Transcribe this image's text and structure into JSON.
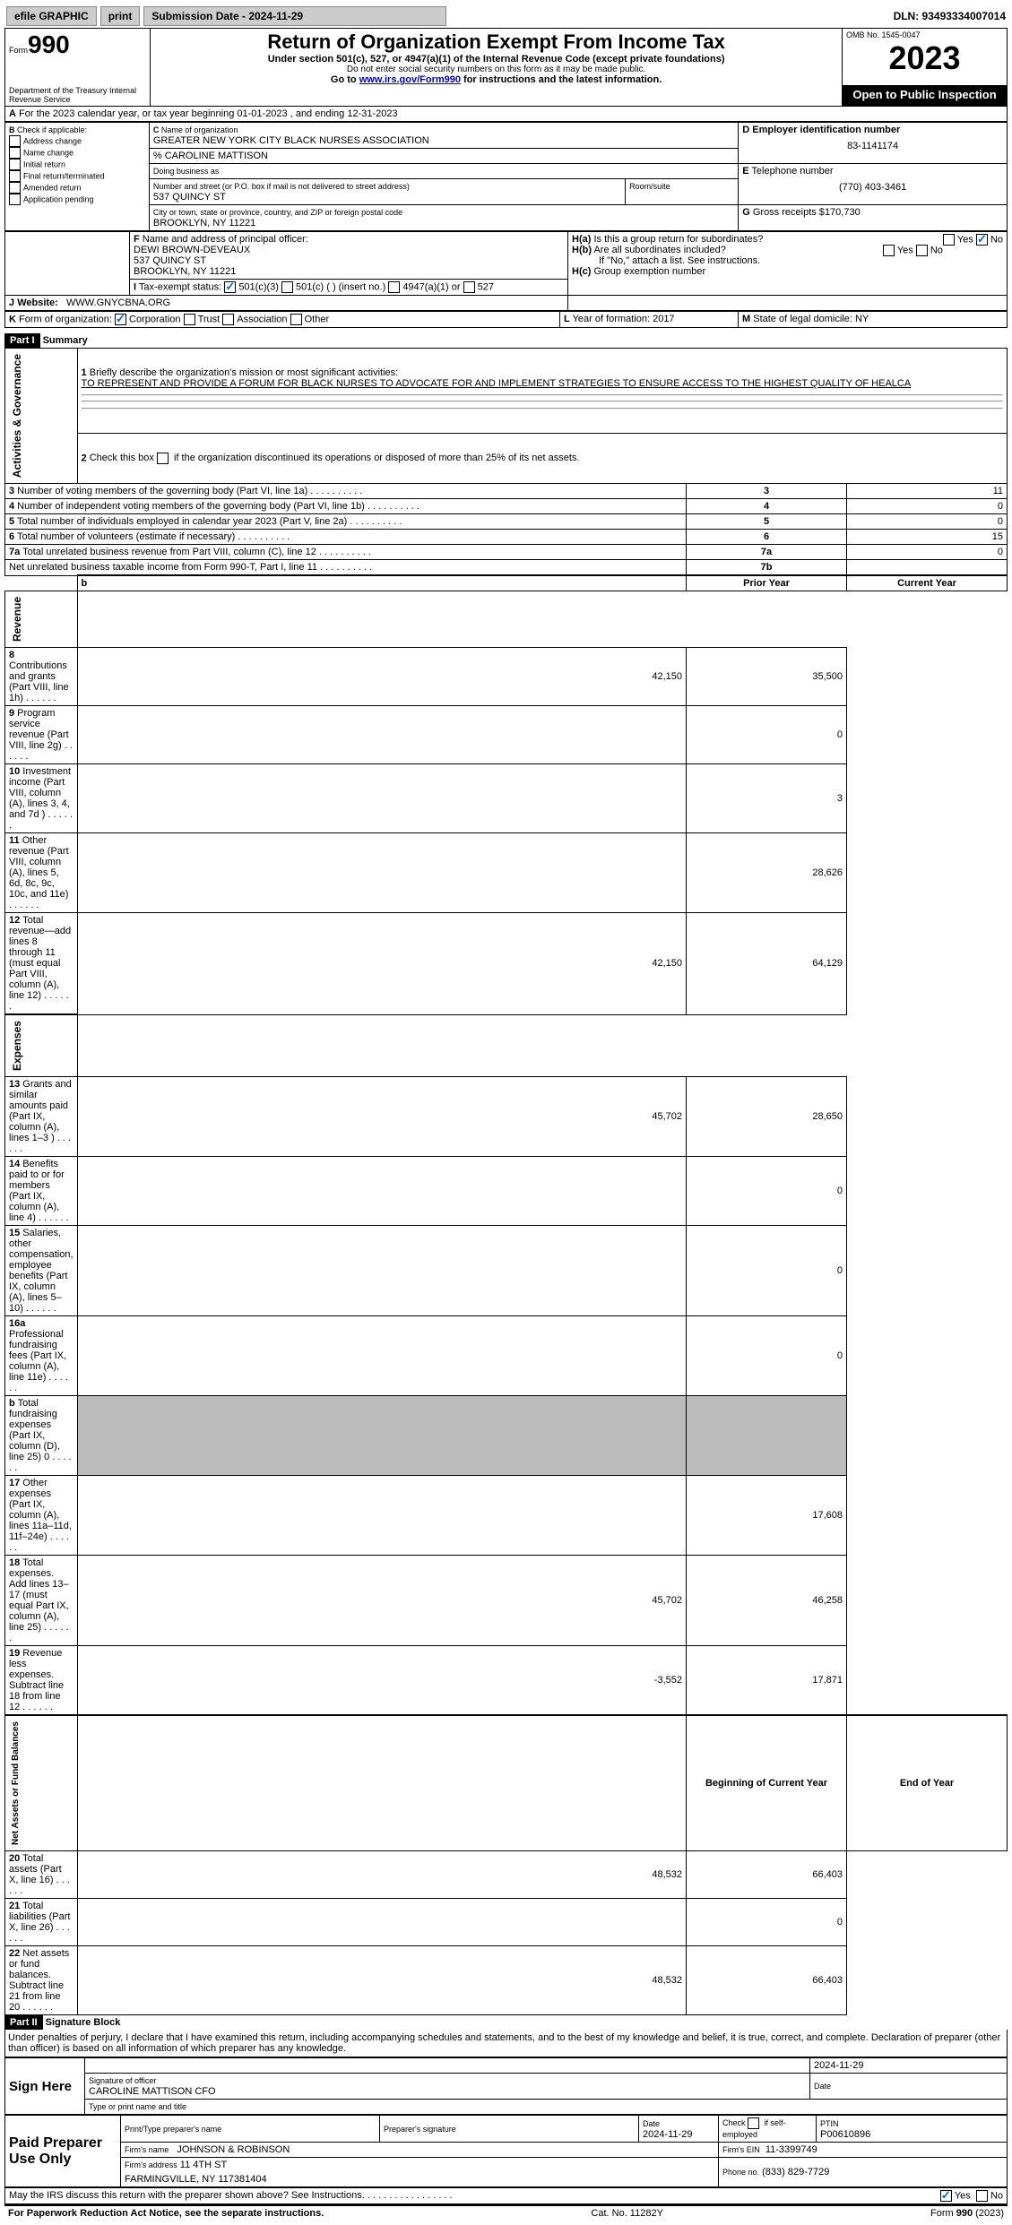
{
  "topbar": {
    "efile": "efile GRAPHIC",
    "print": "print",
    "submission": "Submission Date - 2024-11-29",
    "dln": "DLN: 93493334007014"
  },
  "header": {
    "form_label": "Form",
    "form_num": "990",
    "title": "Return of Organization Exempt From Income Tax",
    "sub1": "Under section 501(c), 527, or 4947(a)(1) of the Internal Revenue Code (except private foundations)",
    "sub2": "Do not enter social security numbers on this form as it may be made public.",
    "sub3_pre": "Go to ",
    "sub3_link": "www.irs.gov/Form990",
    "sub3_post": " for instructions and the latest information.",
    "dept": "Department of the Treasury\nInternal Revenue Service",
    "omb": "OMB No. 1545-0047",
    "year": "2023",
    "open": "Open to Public Inspection"
  },
  "A": {
    "text": "For the 2023 calendar year, or tax year beginning 01-01-2023    , and ending 12-31-2023"
  },
  "B": {
    "label": "Check if applicable:",
    "opts": [
      "Address change",
      "Name change",
      "Initial return",
      "Final return/terminated",
      "Amended return",
      "Application pending"
    ]
  },
  "C": {
    "label": "Name of organization",
    "name": "GREATER NEW YORK CITY BLACK NURSES ASSOCIATION",
    "care": "% CAROLINE MATTISON",
    "dba_label": "Doing business as",
    "street_label": "Number and street (or P.O. box if mail is not delivered to street address)",
    "street": "537 QUINCY ST",
    "room_label": "Room/suite",
    "city_label": "City or town, state or province, country, and ZIP or foreign postal code",
    "city": "BROOKLYN, NY  11221"
  },
  "D": {
    "label": "Employer identification number",
    "val": "83-1141174"
  },
  "E": {
    "label": "Telephone number",
    "val": "(770) 403-3461"
  },
  "G": {
    "label": "Gross receipts $",
    "val": "170,730"
  },
  "F": {
    "label": "Name and address of principal officer:",
    "name": "DEWI BROWN-DEVEAUX",
    "street": "537 QUINCY ST",
    "city": "BROOKLYN, NY  11221"
  },
  "H": {
    "a": "Is this a group return for subordinates?",
    "b": "Are all subordinates included?",
    "note": "If \"No,\" attach a list. See instructions.",
    "c": "Group exemption number",
    "yes": "Yes",
    "no": "No"
  },
  "I": {
    "label": "Tax-exempt status:",
    "o1": "501(c)(3)",
    "o2": "501(c) (  ) (insert no.)",
    "o3": "4947(a)(1) or",
    "o4": "527"
  },
  "J": {
    "label": "Website:",
    "val": "WWW.GNYCBNA.ORG"
  },
  "K": {
    "label": "Form of organization:",
    "opts": [
      "Corporation",
      "Trust",
      "Association",
      "Other"
    ]
  },
  "L": {
    "label": "Year of formation:",
    "val": "2017"
  },
  "M": {
    "label": "State of legal domicile:",
    "val": "NY"
  },
  "part1": {
    "hdr": "Part I",
    "title": "Summary",
    "l1": {
      "label": "Briefly describe the organization's mission or most significant activities:",
      "val": "TO REPRESENT AND PROVIDE A FORUM FOR BLACK NURSES TO ADVOCATE FOR AND IMPLEMENT STRATEGIES TO ENSURE ACCESS TO THE HIGHEST QUALITY OF HEALCA"
    },
    "l2": "Check this box        if the organization discontinued its operations or disposed of more than 25% of its net assets.",
    "rows_ag": [
      {
        "n": "3",
        "t": "Number of voting members of the governing body (Part VI, line 1a)",
        "k": "3",
        "v": "11"
      },
      {
        "n": "4",
        "t": "Number of independent voting members of the governing body (Part VI, line 1b)",
        "k": "4",
        "v": "0"
      },
      {
        "n": "5",
        "t": "Total number of individuals employed in calendar year 2023 (Part V, line 2a)",
        "k": "5",
        "v": "0"
      },
      {
        "n": "6",
        "t": "Total number of volunteers (estimate if necessary)",
        "k": "6",
        "v": "15"
      },
      {
        "n": "7a",
        "t": "Total unrelated business revenue from Part VIII, column (C), line 12",
        "k": "7a",
        "v": "0"
      },
      {
        "n": "",
        "t": "Net unrelated business taxable income from Form 990-T, Part I, line 11",
        "k": "7b",
        "v": ""
      }
    ],
    "col_prior": "Prior Year",
    "col_curr": "Current Year",
    "rows_rev": [
      {
        "n": "8",
        "t": "Contributions and grants (Part VIII, line 1h)",
        "p": "42,150",
        "c": "35,500"
      },
      {
        "n": "9",
        "t": "Program service revenue (Part VIII, line 2g)",
        "p": "",
        "c": "0"
      },
      {
        "n": "10",
        "t": "Investment income (Part VIII, column (A), lines 3, 4, and 7d )",
        "p": "",
        "c": "3"
      },
      {
        "n": "11",
        "t": "Other revenue (Part VIII, column (A), lines 5, 6d, 8c, 9c, 10c, and 11e)",
        "p": "",
        "c": "28,626"
      },
      {
        "n": "12",
        "t": "Total revenue—add lines 8 through 11 (must equal Part VIII, column (A), line 12)",
        "p": "42,150",
        "c": "64,129"
      }
    ],
    "rows_exp": [
      {
        "n": "13",
        "t": "Grants and similar amounts paid (Part IX, column (A), lines 1–3 )",
        "p": "45,702",
        "c": "28,650"
      },
      {
        "n": "14",
        "t": "Benefits paid to or for members (Part IX, column (A), line 4)",
        "p": "",
        "c": "0"
      },
      {
        "n": "15",
        "t": "Salaries, other compensation, employee benefits (Part IX, column (A), lines 5–10)",
        "p": "",
        "c": "0"
      },
      {
        "n": "16a",
        "t": "Professional fundraising fees (Part IX, column (A), line 11e)",
        "p": "",
        "c": "0"
      },
      {
        "n": "b",
        "t": "Total fundraising expenses (Part IX, column (D), line 25) 0",
        "p": "grey",
        "c": "grey"
      },
      {
        "n": "17",
        "t": "Other expenses (Part IX, column (A), lines 11a–11d, 11f–24e)",
        "p": "",
        "c": "17,608"
      },
      {
        "n": "18",
        "t": "Total expenses. Add lines 13–17 (must equal Part IX, column (A), line 25)",
        "p": "45,702",
        "c": "46,258"
      },
      {
        "n": "19",
        "t": "Revenue less expenses. Subtract line 18 from line 12",
        "p": "-3,552",
        "c": "17,871"
      }
    ],
    "col_beg": "Beginning of Current Year",
    "col_end": "End of Year",
    "rows_na": [
      {
        "n": "20",
        "t": "Total assets (Part X, line 16)",
        "p": "48,532",
        "c": "66,403"
      },
      {
        "n": "21",
        "t": "Total liabilities (Part X, line 26)",
        "p": "",
        "c": "0"
      },
      {
        "n": "22",
        "t": "Net assets or fund balances. Subtract line 21 from line 20",
        "p": "48,532",
        "c": "66,403"
      }
    ],
    "side_ag": "Activities & Governance",
    "side_rev": "Revenue",
    "side_exp": "Expenses",
    "side_na": "Net Assets or Fund Balances"
  },
  "part2": {
    "hdr": "Part II",
    "title": "Signature Block",
    "decl": "Under penalties of perjury, I declare that I have examined this return, including accompanying schedules and statements, and to the best of my knowledge and belief, it is true, correct, and complete. Declaration of preparer (other than officer) is based on all information of which preparer has any knowledge."
  },
  "sign": {
    "here": "Sign Here",
    "sig_label": "Signature of officer",
    "name": "CAROLINE MATTISON CFO",
    "title_label": "Type or print name and title",
    "date": "2024-11-29",
    "date_label": "Date"
  },
  "paid": {
    "here": "Paid Preparer Use Only",
    "pn_label": "Print/Type preparer's name",
    "ps_label": "Preparer's signature",
    "date_label": "Date",
    "date": "2024-11-29",
    "check_label": "Check        if self-employed",
    "ptin_label": "PTIN",
    "ptin": "P00610896",
    "firm_label": "Firm's name",
    "firm": "JOHNSON & ROBINSON",
    "ein_label": "Firm's EIN",
    "ein": "11-3399749",
    "addr_label": "Firm's address",
    "addr": "11 4TH ST",
    "addr2": "FARMINGVILLE, NY  117381404",
    "phone_label": "Phone no.",
    "phone": "(833) 829-7729"
  },
  "footer": {
    "q": "May the IRS discuss this return with the preparer shown above? See Instructions.",
    "yes": "Yes",
    "no": "No",
    "pra": "For Paperwork Reduction Act Notice, see the separate instructions.",
    "cat": "Cat. No. 11282Y",
    "form": "Form 990 (2023)"
  }
}
